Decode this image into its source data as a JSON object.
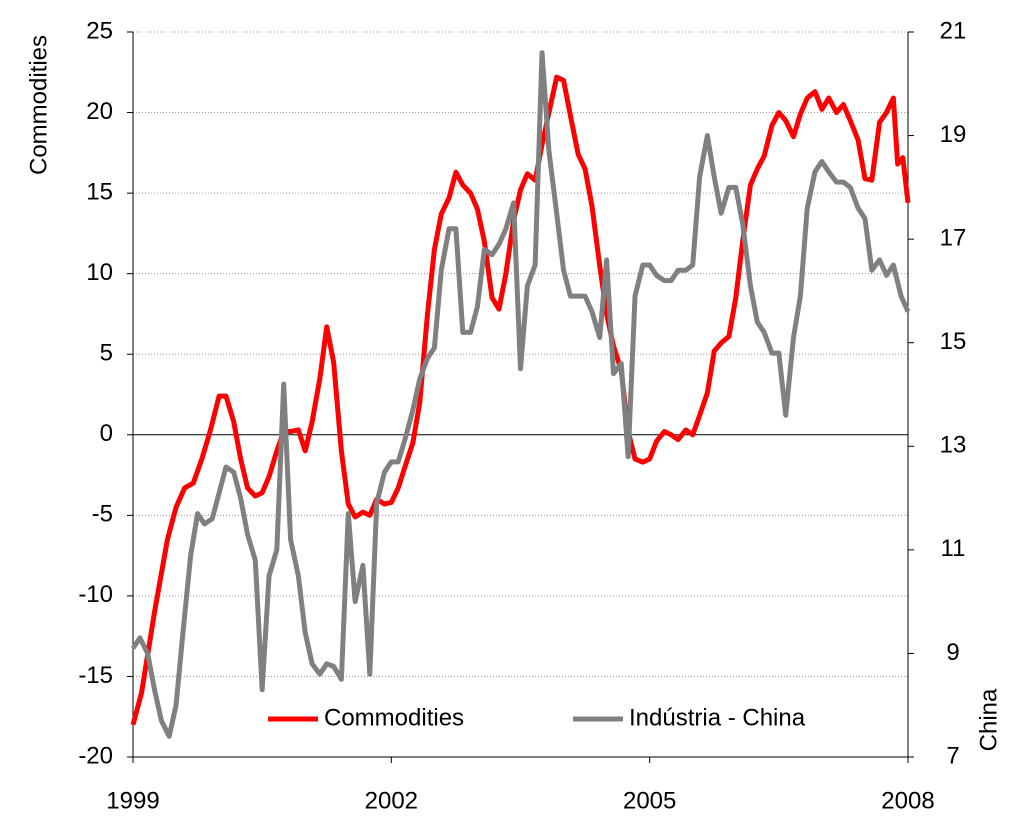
{
  "chart_data": {
    "type": "line",
    "y_label": "Commodities",
    "y2_label": "China",
    "xlim": [
      1999,
      2008
    ],
    "xticks": [
      1999,
      2002,
      2005,
      2008
    ],
    "ylim": [
      -20,
      25
    ],
    "yticks": [
      -20,
      -15,
      -10,
      -5,
      0,
      5,
      10,
      15,
      20,
      25
    ],
    "y2lim": [
      7,
      21
    ],
    "y2ticks": [
      7,
      9,
      11,
      13,
      15,
      17,
      19,
      21
    ],
    "grid": true,
    "legend": "bottom",
    "series": [
      {
        "name": "Commodities",
        "color": "#ff0000",
        "x": [
          1999.0,
          1999.1,
          1999.25,
          1999.4,
          1999.5,
          1999.6,
          1999.7,
          1999.8,
          1999.9,
          2000.0,
          2000.08,
          2000.17,
          2000.25,
          2000.33,
          2000.42,
          2000.5,
          2000.58,
          2000.67,
          2000.75,
          2000.83,
          2000.92,
          2001.0,
          2001.08,
          2001.17,
          2001.25,
          2001.33,
          2001.42,
          2001.5,
          2001.58,
          2001.67,
          2001.75,
          2001.83,
          2001.92,
          2002.0,
          2002.08,
          2002.17,
          2002.25,
          2002.33,
          2002.42,
          2002.5,
          2002.58,
          2002.67,
          2002.75,
          2002.83,
          2002.92,
          2003.0,
          2003.08,
          2003.17,
          2003.25,
          2003.33,
          2003.42,
          2003.5,
          2003.58,
          2003.67,
          2003.75,
          2003.83,
          2003.92,
          2004.0,
          2004.08,
          2004.17,
          2004.25,
          2004.33,
          2004.42,
          2004.5,
          2004.58,
          2004.67,
          2004.75,
          2004.83,
          2004.92,
          2005.0,
          2005.08,
          2005.17,
          2005.25,
          2005.33,
          2005.42,
          2005.5,
          2005.58,
          2005.67,
          2005.75,
          2005.83,
          2005.92,
          2006.0,
          2006.08,
          2006.17,
          2006.25,
          2006.33,
          2006.42,
          2006.5,
          2006.58,
          2006.67,
          2006.75,
          2006.83,
          2006.92,
          2007.0,
          2007.08,
          2007.17,
          2007.25,
          2007.33,
          2007.42,
          2007.5,
          2007.58,
          2007.67,
          2007.75,
          2007.83,
          2007.88,
          2007.94,
          2008.0
        ],
        "values": [
          -18,
          -16,
          -11,
          -6.5,
          -4.5,
          -3.3,
          -3,
          -1.5,
          0.3,
          2.4,
          2.4,
          0.8,
          -1.5,
          -3.3,
          -3.8,
          -3.6,
          -2.6,
          -1,
          0.2,
          0.2,
          0.3,
          -1,
          0.8,
          3.5,
          6.7,
          4.5,
          -1,
          -4.3,
          -5.1,
          -4.8,
          -5,
          -4,
          -4.3,
          -4.2,
          -3.3,
          -1.8,
          -0.5,
          2,
          7.5,
          11.5,
          13.7,
          14.7,
          16.3,
          15.5,
          15,
          14,
          12,
          8.5,
          7.8,
          10,
          13.3,
          15.2,
          16.2,
          15.8,
          18,
          20,
          22.2,
          22,
          19.8,
          17.4,
          16.5,
          14.2,
          10.5,
          7.5,
          5.5,
          4,
          0.2,
          -1.5,
          -1.7,
          -1.5,
          -0.4,
          0.2,
          0,
          -0.3,
          0.3,
          0,
          1.2,
          2.6,
          5.2,
          5.7,
          6.1,
          8.5,
          12,
          15.5,
          16.5,
          17.3,
          19.2,
          20,
          19.5,
          18.5,
          19.9,
          20.9,
          21.3,
          20.2,
          20.9,
          20,
          20.5,
          19.5,
          18.3,
          15.9,
          15.8,
          19.4,
          20,
          20.9,
          16.8,
          17.2,
          14.4
        ]
      },
      {
        "name": "Indústria - China",
        "color": "#808080",
        "axis": "y2",
        "x": [
          1999.0,
          1999.08,
          1999.17,
          1999.25,
          1999.33,
          1999.42,
          1999.5,
          1999.58,
          1999.67,
          1999.75,
          1999.83,
          1999.92,
          2000.0,
          2000.08,
          2000.17,
          2000.25,
          2000.33,
          2000.42,
          2000.5,
          2000.58,
          2000.67,
          2000.75,
          2000.83,
          2000.92,
          2001.0,
          2001.08,
          2001.17,
          2001.25,
          2001.33,
          2001.42,
          2001.5,
          2001.58,
          2001.67,
          2001.75,
          2001.83,
          2001.92,
          2002.0,
          2002.08,
          2002.17,
          2002.25,
          2002.33,
          2002.42,
          2002.5,
          2002.58,
          2002.67,
          2002.75,
          2002.83,
          2002.92,
          2003.0,
          2003.08,
          2003.17,
          2003.25,
          2003.33,
          2003.42,
          2003.5,
          2003.58,
          2003.67,
          2003.75,
          2003.83,
          2003.92,
          2004.0,
          2004.08,
          2004.17,
          2004.25,
          2004.33,
          2004.42,
          2004.5,
          2004.58,
          2004.67,
          2004.75,
          2004.83,
          2004.92,
          2005.0,
          2005.08,
          2005.17,
          2005.25,
          2005.33,
          2005.42,
          2005.5,
          2005.58,
          2005.67,
          2005.75,
          2005.83,
          2005.92,
          2006.0,
          2006.08,
          2006.17,
          2006.25,
          2006.33,
          2006.42,
          2006.5,
          2006.58,
          2006.67,
          2006.75,
          2006.83,
          2006.92,
          2007.0,
          2007.08,
          2007.17,
          2007.25,
          2007.33,
          2007.42,
          2007.5,
          2007.58,
          2007.67,
          2007.75,
          2007.83,
          2007.92,
          2008.0
        ],
        "values": [
          9.1,
          9.3,
          9.0,
          8.3,
          7.7,
          7.4,
          8.0,
          9.4,
          10.9,
          11.7,
          11.5,
          11.6,
          12.1,
          12.6,
          12.5,
          12.0,
          11.3,
          10.8,
          8.3,
          10.5,
          11.0,
          14.2,
          11.2,
          10.5,
          9.4,
          8.8,
          8.6,
          8.8,
          8.75,
          8.5,
          11.7,
          10.0,
          10.7,
          8.6,
          11.9,
          12.5,
          12.7,
          12.7,
          13.2,
          13.7,
          14.3,
          14.7,
          14.9,
          16.4,
          17.2,
          17.2,
          15.2,
          15.2,
          15.7,
          16.8,
          16.7,
          16.9,
          17.2,
          17.7,
          14.5,
          16.1,
          16.5,
          20.6,
          18.7,
          17.5,
          16.4,
          15.9,
          15.9,
          15.9,
          15.6,
          15.1,
          16.6,
          14.4,
          14.6,
          12.8,
          15.9,
          16.5,
          16.5,
          16.3,
          16.2,
          16.2,
          16.4,
          16.4,
          16.5,
          18.2,
          19.0,
          18.2,
          17.5,
          18.0,
          18.0,
          17.3,
          16.1,
          15.4,
          15.2,
          14.8,
          14.8,
          13.6,
          15.1,
          15.9,
          17.6,
          18.3,
          18.5,
          18.3,
          18.1,
          18.1,
          18.0,
          17.6,
          17.4,
          16.4,
          16.6,
          16.3,
          16.5,
          15.9,
          15.6
        ]
      }
    ]
  }
}
